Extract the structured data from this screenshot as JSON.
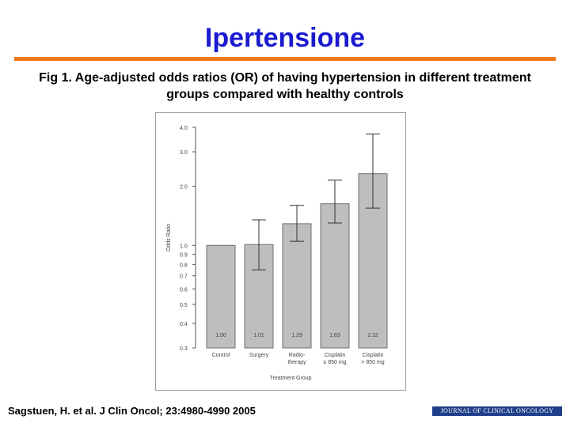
{
  "slide": {
    "title": "Ipertensione",
    "caption": "Fig 1. Age-adjusted odds ratios (OR) of having hypertension in different treatment groups compared with healthy controls",
    "citation": "Sagstuen, H. et al. J Clin Oncol; 23:4980-4990 2005",
    "journal_logo": "JOURNAL OF CLINICAL ONCOLOGY",
    "colors": {
      "title": "#1a1ad0",
      "rule": "#f07a1a",
      "bar": "#bebebe",
      "journal": "#1f3f8a"
    }
  },
  "chart_data": {
    "type": "bar",
    "xlabel": "Treatment Group",
    "ylabel": "Odds Ratio",
    "y_scale": "log",
    "ylim": [
      0.3,
      4.0
    ],
    "yticks": [
      0.3,
      0.4,
      0.5,
      0.6,
      0.7,
      0.8,
      0.9,
      1.0,
      2.0,
      3.0,
      4.0
    ],
    "ytick_labels": [
      "0.3",
      "0.4",
      "0.5",
      "0.6",
      "0.7",
      "0.8",
      "0.9",
      "1.0",
      "2.0",
      "3.0",
      "4.0"
    ],
    "categories": [
      {
        "lines": [
          "Control"
        ]
      },
      {
        "lines": [
          "Surgery"
        ]
      },
      {
        "lines": [
          "Radio-",
          "therapy"
        ]
      },
      {
        "lines": [
          "Cisplatin",
          "≤ 850 mg"
        ]
      },
      {
        "lines": [
          "Cisplatin",
          "> 850 mg"
        ]
      }
    ],
    "values": [
      1.0,
      1.01,
      1.29,
      1.63,
      2.32
    ],
    "value_labels": [
      "1.00",
      "1.01",
      "1.29",
      "1.63",
      "2.32"
    ],
    "ci_lower": [
      null,
      0.75,
      1.05,
      1.3,
      1.55
    ],
    "ci_upper": [
      null,
      1.35,
      1.6,
      2.15,
      3.7
    ],
    "grid": false,
    "legend": "none"
  }
}
